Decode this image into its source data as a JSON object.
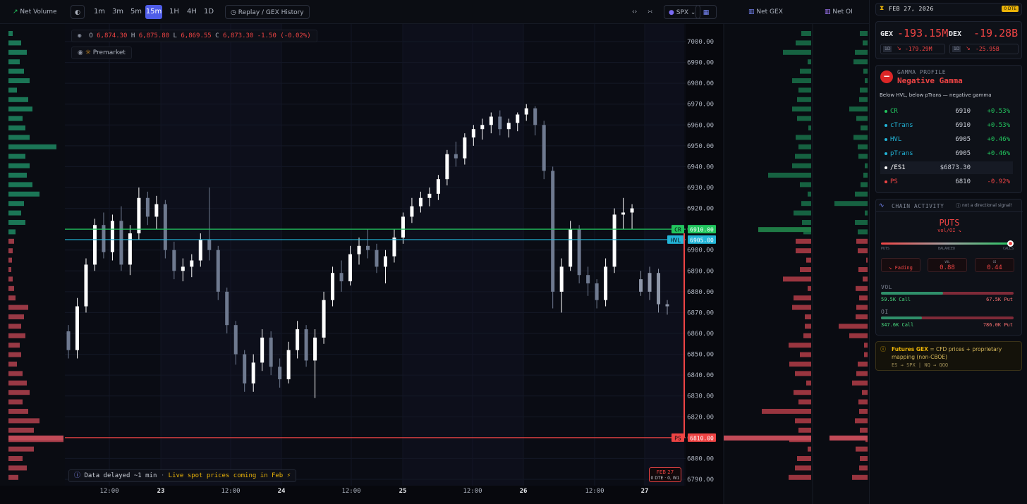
{
  "toolbar": {
    "net_volume": "Net Volume",
    "timeframes": [
      "1m",
      "3m",
      "5m",
      "15m",
      "1H",
      "4H",
      "1D"
    ],
    "active_timeframe": "15m",
    "replay": "Replay / GEX History",
    "symbol": "SPX",
    "net_gex": "Net GEX",
    "net_oi": "Net OI"
  },
  "ohlc": {
    "o_label": "O",
    "o": "6,874.30",
    "h_label": "H",
    "h": "6,875.80",
    "l_label": "L",
    "l": "6,869.55",
    "c_label": "C",
    "c": "6,873.30",
    "change": "-1.50 (-0.02%)"
  },
  "premarket": "Premarket",
  "delay_note": {
    "prefix": "Data delayed ~1 min",
    "sep": "·",
    "live": "Live spot prices coming in Feb ⚡"
  },
  "date_badge": {
    "date": "FEB 27",
    "sub": "0 DTE · 0, W1"
  },
  "price_axis": [
    "7000.00",
    "6990.00",
    "6980.00",
    "6970.00",
    "6960.00",
    "6950.00",
    "6940.00",
    "6930.00",
    "6920.00",
    "6910.00",
    "6900.00",
    "6890.00",
    "6880.00",
    "6870.00",
    "6860.00",
    "6850.00",
    "6840.00",
    "6830.00",
    "6820.00",
    "6810.00",
    "6800.00",
    "6790.00"
  ],
  "time_axis": [
    "12:00",
    "23",
    "12:00",
    "24",
    "12:00",
    "25",
    "12:00",
    "26",
    "12:00",
    "27"
  ],
  "levels": [
    {
      "name": "CR",
      "value": "6910.00",
      "color": "#22c55e"
    },
    {
      "name": "HVL",
      "value": "6905.00",
      "color": "#22b5d8"
    },
    {
      "name": "PS",
      "value": "6810.00",
      "color": "#ef4444"
    }
  ],
  "chart_data": {
    "type": "candlestick",
    "y_range": [
      6786,
      7008
    ],
    "candles": [
      [
        6861,
        6864,
        6848,
        6852
      ],
      [
        6852,
        6877,
        6848,
        6873
      ],
      [
        6873,
        6896,
        6870,
        6893
      ],
      [
        6893,
        6915,
        6890,
        6912
      ],
      [
        6912,
        6918,
        6896,
        6899
      ],
      [
        6899,
        6917,
        6895,
        6914
      ],
      [
        6914,
        6921,
        6890,
        6893
      ],
      [
        6893,
        6912,
        6888,
        6908
      ],
      [
        6908,
        6930,
        6905,
        6925
      ],
      [
        6925,
        6928,
        6912,
        6916
      ],
      [
        6916,
        6926,
        6910,
        6922
      ],
      [
        6922,
        6924,
        6896,
        6900
      ],
      [
        6900,
        6904,
        6886,
        6890
      ],
      [
        6890,
        6896,
        6885,
        6892
      ],
      [
        6892,
        6898,
        6887,
        6895
      ],
      [
        6895,
        6908,
        6892,
        6905
      ],
      [
        6905,
        6930,
        6895,
        6900
      ],
      [
        6900,
        6902,
        6876,
        6880
      ],
      [
        6880,
        6882,
        6860,
        6864
      ],
      [
        6864,
        6866,
        6845,
        6850
      ],
      [
        6850,
        6852,
        6832,
        6836
      ],
      [
        6836,
        6850,
        6832,
        6846
      ],
      [
        6846,
        6862,
        6842,
        6858
      ],
      [
        6858,
        6861,
        6840,
        6844
      ],
      [
        6844,
        6848,
        6834,
        6838
      ],
      [
        6838,
        6856,
        6836,
        6852
      ],
      [
        6852,
        6866,
        6848,
        6862
      ],
      [
        6862,
        6864,
        6844,
        6847
      ],
      [
        6847,
        6862,
        6829,
        6858
      ],
      [
        6858,
        6880,
        6855,
        6876
      ],
      [
        6876,
        6892,
        6873,
        6889
      ],
      [
        6889,
        6895,
        6880,
        6885
      ],
      [
        6885,
        6902,
        6883,
        6898
      ],
      [
        6898,
        6906,
        6893,
        6902
      ],
      [
        6902,
        6910,
        6896,
        6900
      ],
      [
        6900,
        6903,
        6889,
        6892
      ],
      [
        6892,
        6900,
        6884,
        6897
      ],
      [
        6897,
        6910,
        6894,
        6906
      ],
      [
        6906,
        6918,
        6903,
        6916
      ],
      [
        6916,
        6925,
        6913,
        6921
      ],
      [
        6921,
        6928,
        6918,
        6925
      ],
      [
        6925,
        6930,
        6921,
        6927
      ],
      [
        6927,
        6936,
        6924,
        6934
      ],
      [
        6934,
        6948,
        6931,
        6946
      ],
      [
        6946,
        6952,
        6940,
        6944
      ],
      [
        6944,
        6956,
        6941,
        6954
      ],
      [
        6954,
        6960,
        6950,
        6958
      ],
      [
        6958,
        6963,
        6953,
        6960
      ],
      [
        6960,
        6966,
        6956,
        6964
      ],
      [
        6964,
        6967,
        6955,
        6958
      ],
      [
        6958,
        6963,
        6954,
        6961
      ],
      [
        6961,
        6966,
        6957,
        6965
      ],
      [
        6965,
        6970,
        6962,
        6968
      ],
      [
        6968,
        6969,
        6955,
        6960
      ],
      [
        6960,
        6962,
        6934,
        6938
      ],
      [
        6938,
        6940,
        6872,
        6880
      ],
      [
        6880,
        6896,
        6870,
        6892
      ],
      [
        6892,
        6914,
        6890,
        6910
      ],
      [
        6910,
        6912,
        6884,
        6888
      ],
      [
        6888,
        6892,
        6878,
        6884
      ],
      [
        6884,
        6886,
        6872,
        6876
      ],
      [
        6876,
        6896,
        6873,
        6892
      ],
      [
        6892,
        6920,
        6889,
        6917
      ],
      [
        6917,
        6925,
        6910,
        6918
      ],
      [
        6918,
        6922,
        6910,
        6920
      ],
      [
        6886,
        6890,
        6878,
        6880
      ],
      [
        6880,
        6892,
        6876,
        6889
      ],
      [
        6889,
        6891,
        6870,
        6874
      ],
      [
        6874,
        6876,
        6869,
        6873
      ]
    ]
  },
  "panel": {
    "date": "FEB 27, 2026",
    "dte_badge": "0 DTE",
    "gex_label": "GEX",
    "gex_value": "-193.15M",
    "gex_sub_badge": "1D",
    "gex_sub": "-179.29M",
    "dex_label": "DEX",
    "dex_value": "-19.28B",
    "dex_sub_badge": "1D",
    "dex_sub": "-25.95B",
    "gamma_title": "GAMMA PROFILE",
    "gamma_value": "Negative Gamma",
    "gamma_desc": "Below HVL, below pTrans — negative gamma",
    "level_rows": [
      {
        "name": "CR",
        "value": "6910",
        "pct": "+0.53%",
        "color": "#22c55e",
        "pct_color": "#22c55e"
      },
      {
        "name": "cTrans",
        "value": "6910",
        "pct": "+0.53%",
        "color": "#22b5d8",
        "pct_color": "#22c55e"
      },
      {
        "name": "HVL",
        "value": "6905",
        "pct": "+0.46%",
        "color": "#22b5d8",
        "pct_color": "#22c55e"
      },
      {
        "name": "pTrans",
        "value": "6905",
        "pct": "+0.46%",
        "color": "#22b5d8",
        "pct_color": "#22c55e"
      },
      {
        "name": "/ES1",
        "value": "$6873.30",
        "pct": "",
        "color": "#ffffff",
        "pct_color": "#ffffff"
      },
      {
        "name": "PS",
        "value": "6810",
        "pct": "-0.92%",
        "color": "#ef4444",
        "pct_color": "#ef4444"
      }
    ],
    "chain_title": "CHAIN ACTIVITY",
    "chain_note": "not a directional signal!",
    "puts_label": "PUTS",
    "puts_sub": "vol/OI ↘",
    "slider_labels": [
      "PUTS",
      "BALANCED",
      "CALLS"
    ],
    "slider_position": 0.98,
    "fading": "↘ Fading",
    "vol_label": "VOL",
    "vol_value": "0.88",
    "oi_label": "OI",
    "oi_value": "0.44",
    "vol_section": "VOL",
    "vol_call": "59.5K Call",
    "vol_put": "67.5K Put",
    "vol_call_share": 0.47,
    "oi_section": "OI",
    "oi_call": "347.6K Call",
    "oi_put": "786.0K Put",
    "oi_call_share": 0.31,
    "futures_title": "Futures GEX",
    "futures_text": "= CFD prices + proprietary mapping (non-CBOE)",
    "futures_map": "ES → SPX  |  NQ → QQQ"
  }
}
